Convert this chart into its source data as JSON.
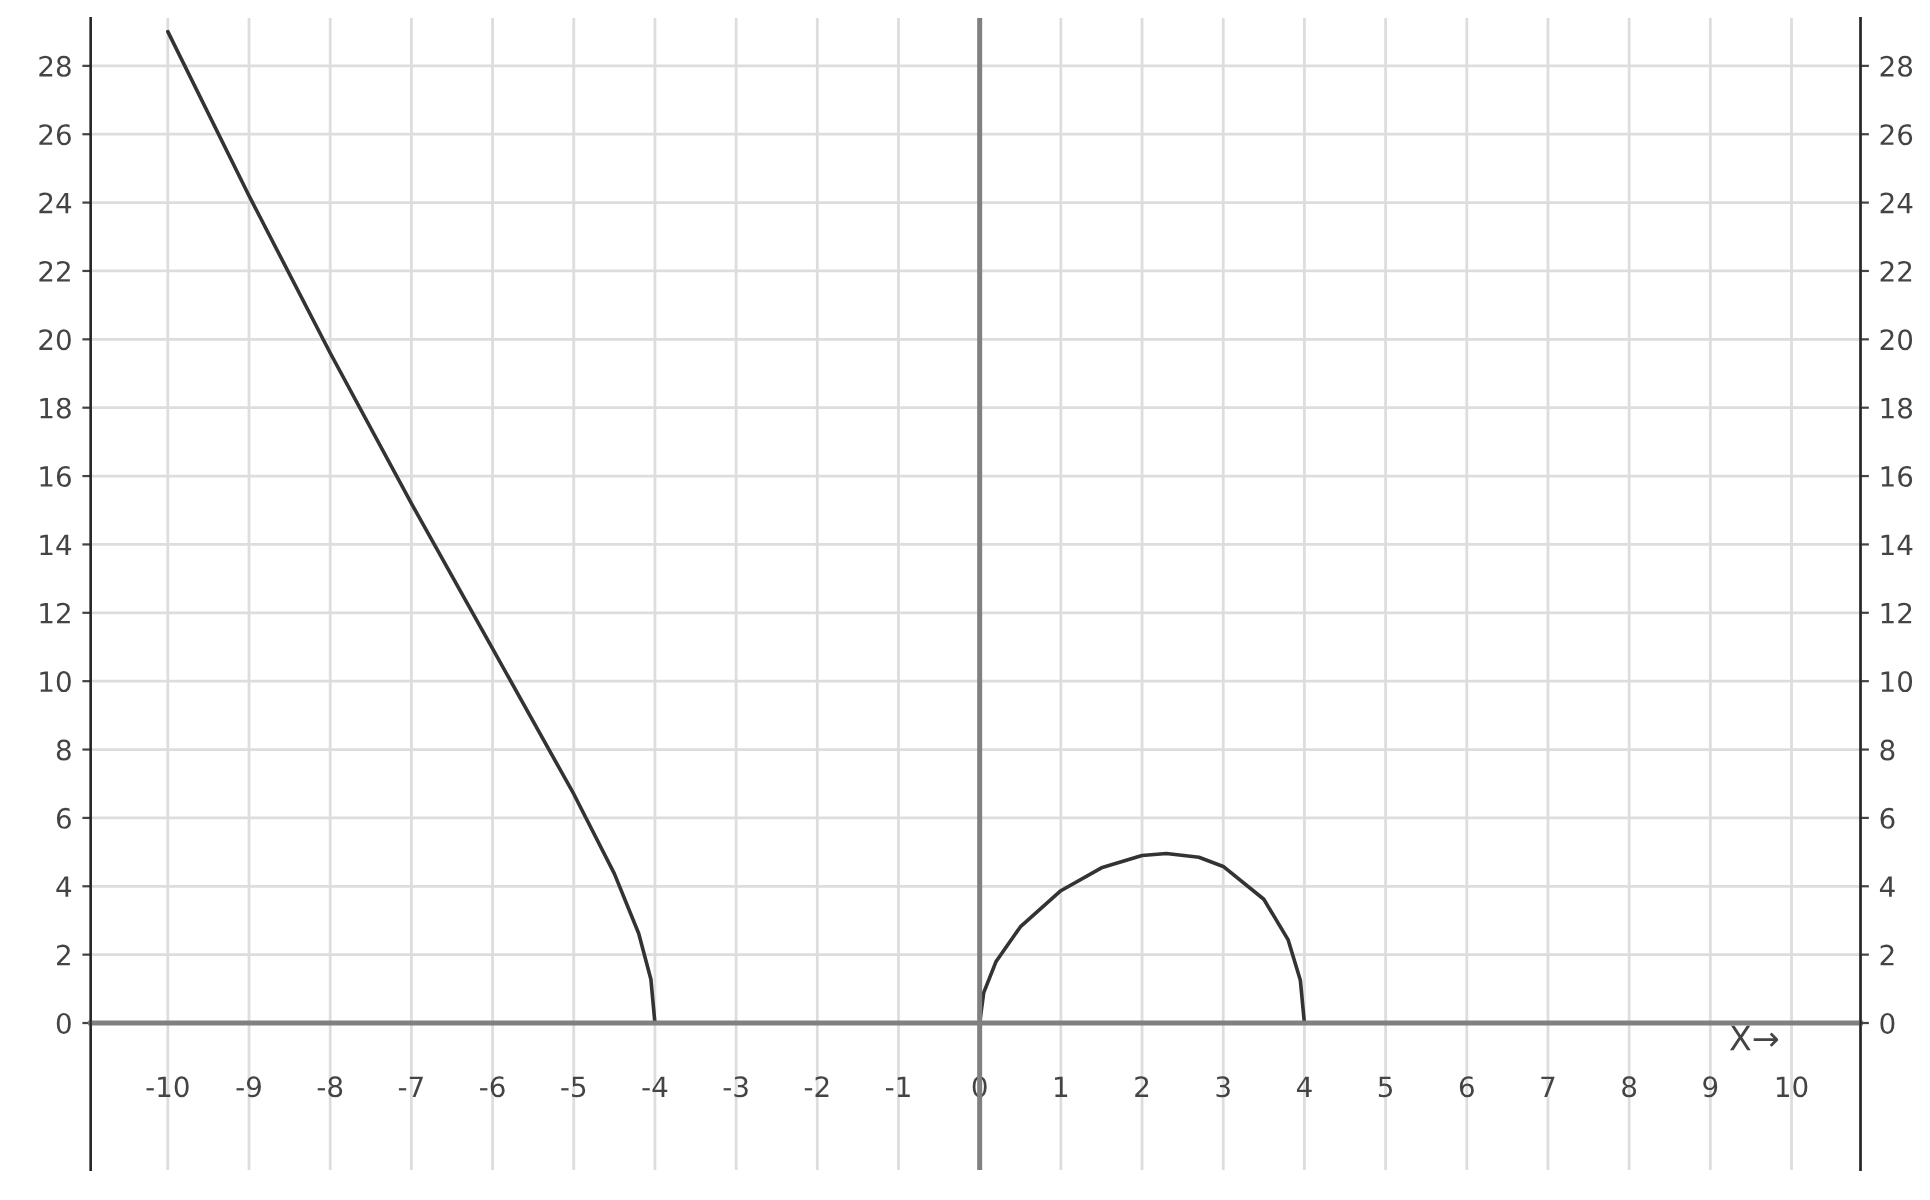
{
  "chart_data": {
    "type": "line",
    "series": [
      {
        "color": "#333333",
        "x": [
          -10,
          -9,
          -8,
          -7,
          -6,
          -5,
          -4.5,
          -4.2,
          -4.05,
          -4
        ],
        "values": [
          29.0,
          24.2,
          19.6,
          15.2,
          10.95,
          6.7,
          4.37,
          2.62,
          1.28,
          0
        ]
      },
      {
        "color": "#333333",
        "x": [
          0,
          0.05,
          0.2,
          0.5,
          1,
          1.5,
          2,
          2.3,
          2.7,
          3,
          3.5,
          3.8,
          3.95,
          4
        ],
        "values": [
          0,
          0.89,
          1.79,
          2.81,
          3.87,
          4.54,
          4.9,
          4.96,
          4.85,
          4.58,
          3.62,
          2.43,
          1.25,
          0
        ]
      }
    ],
    "xlim": [
      -10.95,
      10.85
    ],
    "ylim": [
      -4.3,
      29.4
    ],
    "y2lim": [
      -4.3,
      29.4
    ],
    "xticks": [
      -10,
      -9,
      -8,
      -7,
      -6,
      -5,
      -4,
      -3,
      -2,
      -1,
      0,
      1,
      2,
      3,
      4,
      5,
      6,
      7,
      8,
      9,
      10
    ],
    "yticks": [
      0,
      2,
      4,
      6,
      8,
      10,
      12,
      14,
      16,
      18,
      20,
      22,
      24,
      26,
      28
    ],
    "y2ticks": [
      0,
      2,
      4,
      6,
      8,
      10,
      12,
      14,
      16,
      18,
      20,
      22,
      24,
      26,
      28
    ],
    "ref_lines": [
      {
        "axis": "x",
        "value": 0,
        "color": "#808080"
      }
    ],
    "annotations": [
      "X→"
    ],
    "grid": true,
    "marker": "none",
    "line_style": "solid",
    "legend": false
  }
}
